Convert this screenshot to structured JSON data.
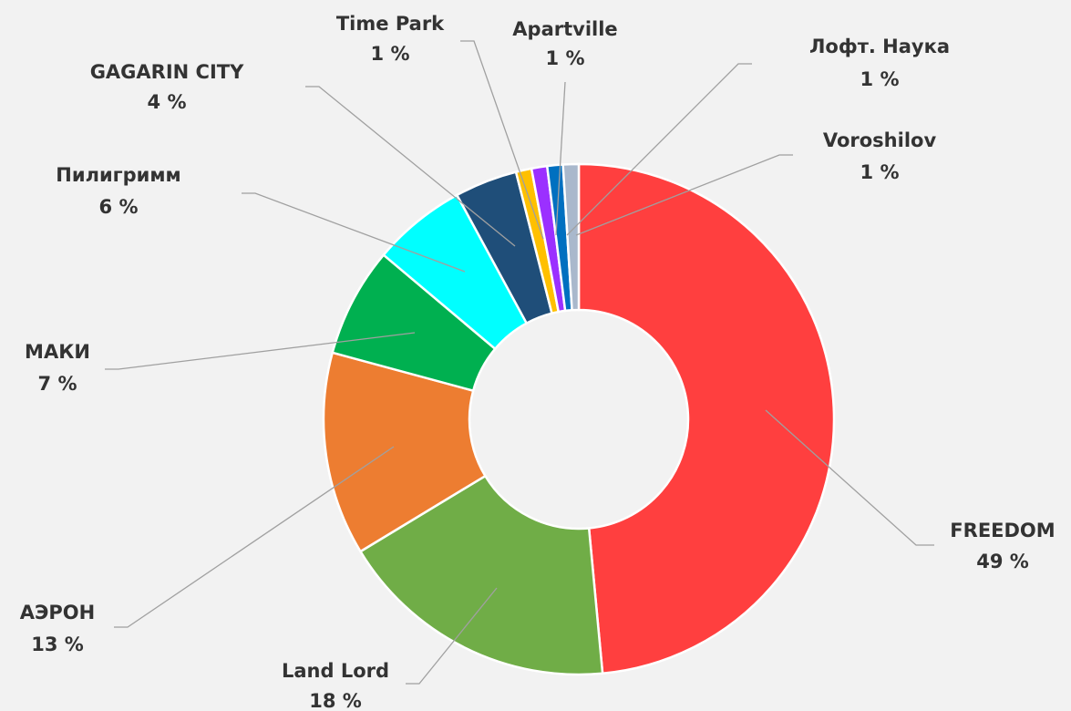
{
  "chart_data": {
    "type": "donut",
    "categories": [
      "FREEDOM",
      "Land Lord",
      "АЭРОН",
      "МАКИ",
      "Пилигримм",
      "GAGARIN CITY",
      "Time Park",
      "Apartville",
      "Лофт. Наука",
      "Voroshilov"
    ],
    "values": [
      49,
      18,
      13,
      7,
      6,
      4,
      1,
      1,
      1,
      1
    ],
    "value_labels": [
      "49 %",
      "18 %",
      "13 %",
      "7 %",
      "6 %",
      "4 %",
      "1 %",
      "1 %",
      "1 %",
      "1 %"
    ],
    "colors": [
      "#ff3f3f",
      "#70ad47",
      "#ed7d31",
      "#00b050",
      "#00ffff",
      "#1f4e79",
      "#ffc000",
      "#9b30ff",
      "#0070c0",
      "#a9b8cc"
    ]
  }
}
